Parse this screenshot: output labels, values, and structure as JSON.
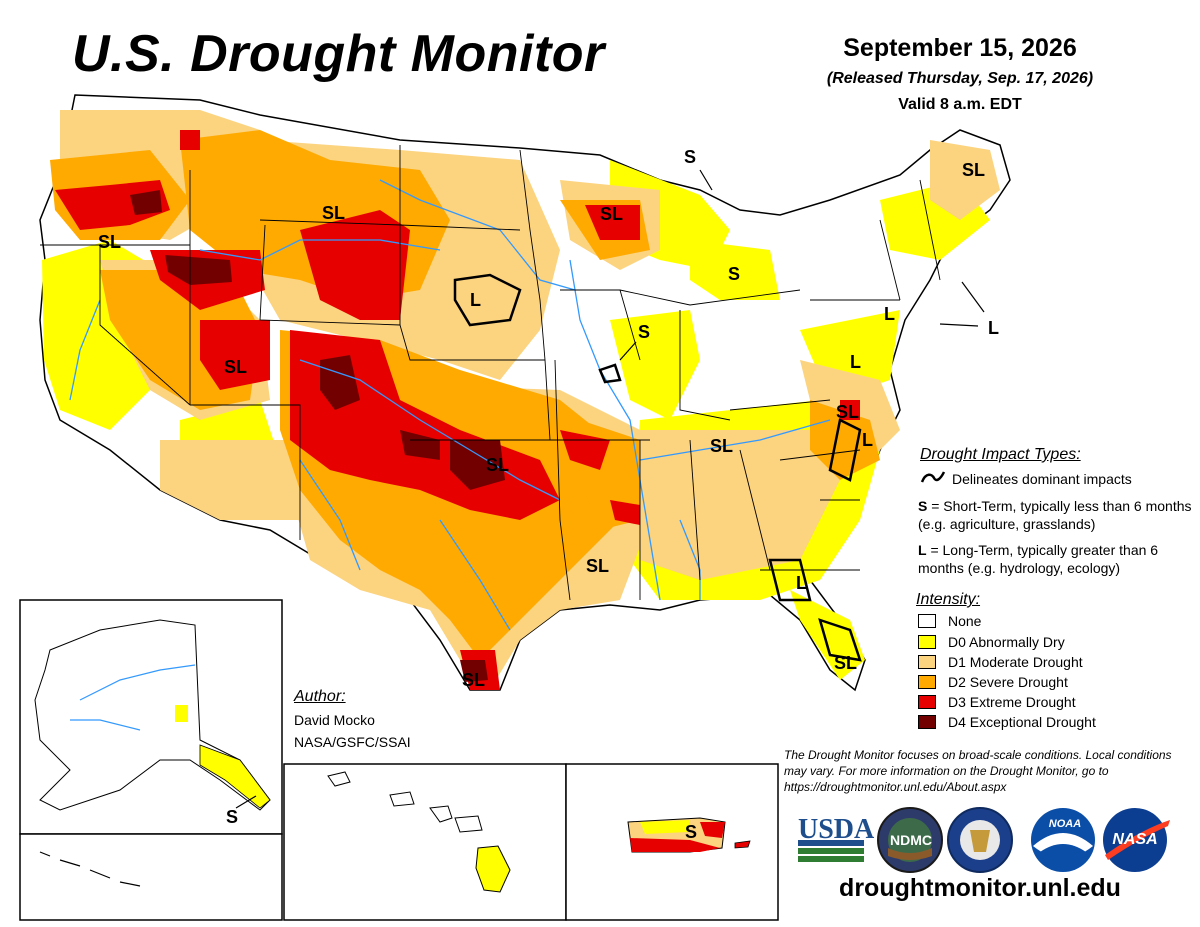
{
  "title": "U.S. Drought Monitor",
  "date": "September 15, 2026",
  "released": "(Released Thursday, Sep. 17, 2026)",
  "valid": "Valid 8 a.m. EDT",
  "impact_types": {
    "title": "Drought Impact Types:",
    "line_text": "Delineates dominant impacts",
    "s_key": "S",
    "s_text": " = Short-Term, typically less than 6 months (e.g. agriculture, grasslands)",
    "l_key": "L",
    "l_text": " = Long-Term, typically greater than 6 months (e.g. hydrology, ecology)"
  },
  "intensity": {
    "title": "Intensity:",
    "items": [
      {
        "label": "None",
        "color": "#ffffff"
      },
      {
        "label": "D0 Abnormally Dry",
        "color": "#ffff00"
      },
      {
        "label": "D1 Moderate Drought",
        "color": "#fcd37f"
      },
      {
        "label": "D2 Severe Drought",
        "color": "#ffaa00"
      },
      {
        "label": "D3 Extreme Drought",
        "color": "#e60000"
      },
      {
        "label": "D4 Exceptional Drought",
        "color": "#730000"
      }
    ]
  },
  "author": {
    "label": "Author:",
    "name": "David Mocko",
    "org": "NASA/GSFC/SSAI"
  },
  "note": "The Drought Monitor focuses on broad-scale conditions. Local conditions may vary. For more information on the Drought Monitor, go to https://droughtmonitor.unl.edu/About.aspx",
  "url": "droughtmonitor.unl.edu",
  "logos": {
    "usda": "USDA",
    "ndmc": "NDMC",
    "noaa": "NOAA",
    "nasa": "NASA"
  },
  "map_labels": [
    {
      "text": "SL",
      "region": "Oregon"
    },
    {
      "text": "SL",
      "region": "Montana"
    },
    {
      "text": "SL",
      "region": "Utah"
    },
    {
      "text": "SL",
      "region": "Wisconsin"
    },
    {
      "text": "SL",
      "region": "Maine"
    },
    {
      "text": "SL",
      "region": "Oklahoma"
    },
    {
      "text": "SL",
      "region": "Louisiana"
    },
    {
      "text": "SL",
      "region": "Kentucky"
    },
    {
      "text": "SL",
      "region": "Virginia"
    },
    {
      "text": "SL",
      "region": "South Texas"
    },
    {
      "text": "SL",
      "region": "Florida"
    },
    {
      "text": "S",
      "region": "Michigan"
    },
    {
      "text": "S",
      "region": "Upper Peninsula"
    },
    {
      "text": "S",
      "region": "Illinois"
    },
    {
      "text": "S",
      "region": "Alaska"
    },
    {
      "text": "S",
      "region": "Puerto Rico"
    },
    {
      "text": "L",
      "region": "South Dakota"
    },
    {
      "text": "L",
      "region": "New York"
    },
    {
      "text": "L",
      "region": "New England"
    },
    {
      "text": "L",
      "region": "Maryland"
    },
    {
      "text": "L",
      "region": "North Carolina"
    },
    {
      "text": "L",
      "region": "Georgia"
    }
  ]
}
